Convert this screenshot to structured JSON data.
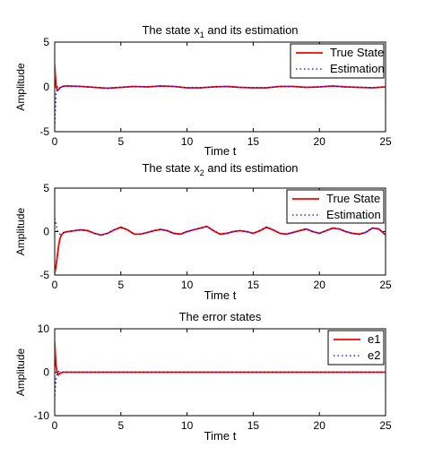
{
  "chart_data": [
    {
      "type": "line",
      "title_text": "The state x",
      "title_sub": "1",
      "title_rest": " and its estimation",
      "xlabel": "Time t",
      "ylabel": "Amplitude",
      "xlim": [
        0,
        25
      ],
      "ylim": [
        -5,
        5
      ],
      "xticks": [
        "0",
        "5",
        "10",
        "15",
        "20",
        "25"
      ],
      "yticks": [
        "5",
        "0",
        "-5"
      ],
      "legend_position": "top-right",
      "series": [
        {
          "name": "True State",
          "color": "#ff0000",
          "style": "solid",
          "x": [
            0,
            0.05,
            0.1,
            0.2,
            0.3,
            0.4,
            0.6,
            0.8,
            1,
            2,
            3,
            4,
            5,
            6,
            7,
            8,
            9,
            10,
            11,
            12,
            13,
            14,
            15,
            16,
            17,
            18,
            19,
            20,
            21,
            22,
            23,
            24,
            25
          ],
          "y": [
            2.5,
            1.2,
            0.2,
            -0.4,
            -0.3,
            -0.1,
            0.05,
            0.1,
            0.1,
            0.05,
            -0.05,
            -0.15,
            -0.05,
            0.05,
            0.0,
            0.1,
            0.05,
            -0.1,
            -0.1,
            0.0,
            0.05,
            -0.05,
            -0.1,
            -0.1,
            0.05,
            0.05,
            -0.05,
            0.0,
            0.1,
            0.0,
            -0.05,
            -0.1,
            0.0
          ]
        },
        {
          "name": "Estimation",
          "color": "#0000ff",
          "style": "dotted",
          "x": [
            0,
            0.05,
            0.1,
            0.2,
            0.3,
            0.4,
            0.6,
            0.8,
            1,
            2,
            3,
            4,
            5,
            6,
            7,
            8,
            9,
            10,
            11,
            12,
            13,
            14,
            15,
            16,
            17,
            18,
            19,
            20,
            21,
            22,
            23,
            24,
            25
          ],
          "y": [
            -4.5,
            -2.5,
            -0.8,
            -0.3,
            -0.2,
            -0.1,
            0.05,
            0.1,
            0.1,
            0.05,
            -0.05,
            -0.15,
            -0.05,
            0.05,
            0.0,
            0.1,
            0.05,
            -0.1,
            -0.1,
            0.0,
            0.05,
            -0.05,
            -0.1,
            -0.1,
            0.05,
            0.05,
            -0.05,
            0.0,
            0.1,
            0.0,
            -0.05,
            -0.1,
            0.0
          ]
        }
      ]
    },
    {
      "type": "line",
      "title_text": "The state x",
      "title_sub": "2",
      "title_rest": " and its estimation",
      "xlabel": "Time t",
      "ylabel": "Amplitude",
      "xlim": [
        0,
        25
      ],
      "ylim": [
        -5,
        5
      ],
      "xticks": [
        "0",
        "5",
        "10",
        "15",
        "20",
        "25"
      ],
      "yticks": [
        "5",
        "0",
        "-5"
      ],
      "legend_position": "top-right",
      "series": [
        {
          "name": "True State",
          "color": "#ff0000",
          "style": "solid",
          "x": [
            0,
            0.1,
            0.2,
            0.3,
            0.4,
            0.5,
            0.7,
            1,
            1.5,
            2,
            2.5,
            3,
            3.5,
            4,
            4.5,
            5,
            5.5,
            6,
            6.5,
            7,
            7.5,
            8,
            8.5,
            9,
            9.5,
            10,
            10.5,
            11,
            11.5,
            12,
            12.5,
            13,
            13.5,
            14,
            14.5,
            15,
            15.5,
            16,
            16.5,
            17,
            17.5,
            18,
            18.5,
            19,
            19.5,
            20,
            20.5,
            21,
            21.5,
            22,
            22.5,
            23,
            23.5,
            24,
            24.5,
            25
          ],
          "y": [
            -4.8,
            -4.0,
            -2.8,
            -1.6,
            -0.8,
            -0.4,
            -0.1,
            0.0,
            0.1,
            0.2,
            0.1,
            -0.2,
            -0.4,
            -0.2,
            0.2,
            0.5,
            0.2,
            -0.3,
            -0.3,
            -0.1,
            0.1,
            0.25,
            0.1,
            -0.2,
            -0.3,
            0.0,
            0.2,
            0.4,
            0.6,
            0.1,
            -0.3,
            -0.2,
            0.0,
            0.1,
            0.0,
            -0.2,
            0.1,
            0.5,
            0.2,
            -0.2,
            -0.3,
            -0.1,
            0.1,
            0.3,
            0.0,
            -0.2,
            0.1,
            0.4,
            0.3,
            0.0,
            -0.2,
            -0.3,
            -0.1,
            0.4,
            0.3,
            -0.4
          ]
        },
        {
          "name": "Estimation",
          "color": "#0000ff",
          "style": "dotted",
          "x": [
            0,
            0.1,
            0.2,
            0.3,
            0.4,
            0.5,
            0.7,
            1,
            1.5,
            2,
            2.5,
            3,
            3.5,
            4,
            4.5,
            5,
            5.5,
            6,
            6.5,
            7,
            7.5,
            8,
            8.5,
            9,
            9.5,
            10,
            10.5,
            11,
            11.5,
            12,
            12.5,
            13,
            13.5,
            14,
            14.5,
            15,
            15.5,
            16,
            16.5,
            17,
            17.5,
            18,
            18.5,
            19,
            19.5,
            20,
            20.5,
            21,
            21.5,
            22,
            22.5,
            23,
            23.5,
            24,
            24.5,
            25
          ],
          "y": [
            1.5,
            0.9,
            0.2,
            -0.2,
            -0.3,
            -0.2,
            -0.1,
            0.0,
            0.1,
            0.2,
            0.1,
            -0.2,
            -0.4,
            -0.2,
            0.2,
            0.5,
            0.2,
            -0.3,
            -0.3,
            -0.1,
            0.1,
            0.25,
            0.1,
            -0.2,
            -0.3,
            0.0,
            0.2,
            0.4,
            0.6,
            0.1,
            -0.3,
            -0.2,
            0.0,
            0.1,
            0.0,
            -0.2,
            0.1,
            0.5,
            0.2,
            -0.2,
            -0.3,
            -0.1,
            0.1,
            0.3,
            0.0,
            -0.2,
            0.1,
            0.4,
            0.3,
            0.0,
            -0.2,
            -0.3,
            -0.1,
            0.4,
            0.3,
            -0.4
          ]
        }
      ]
    },
    {
      "type": "line",
      "title_text": "The error states",
      "title_sub": "",
      "title_rest": "",
      "xlabel": "Time t",
      "ylabel": "Amplitude",
      "xlim": [
        0,
        25
      ],
      "ylim": [
        -10,
        10
      ],
      "xticks": [
        "0",
        "5",
        "10",
        "15",
        "20",
        "25"
      ],
      "yticks": [
        "10",
        "0",
        "-10"
      ],
      "legend_position": "top-right",
      "series": [
        {
          "name": "e1",
          "color": "#ff0000",
          "style": "solid",
          "x": [
            0,
            0.05,
            0.1,
            0.2,
            0.3,
            0.4,
            0.6,
            1,
            5,
            10,
            15,
            20,
            25
          ],
          "y": [
            7.0,
            4.0,
            1.5,
            -0.3,
            -0.6,
            -0.2,
            0.0,
            0.0,
            0.0,
            0.0,
            0.0,
            0.0,
            0.0
          ]
        },
        {
          "name": "e2",
          "color": "#0000ff",
          "style": "dotted",
          "x": [
            0,
            0.05,
            0.1,
            0.2,
            0.3,
            0.4,
            0.6,
            1,
            5,
            10,
            15,
            20,
            25
          ],
          "y": [
            -6.3,
            -3.5,
            -1.5,
            -0.4,
            0.2,
            0.1,
            0.0,
            0.0,
            0.0,
            0.0,
            0.0,
            0.0,
            0.0
          ]
        }
      ]
    }
  ]
}
